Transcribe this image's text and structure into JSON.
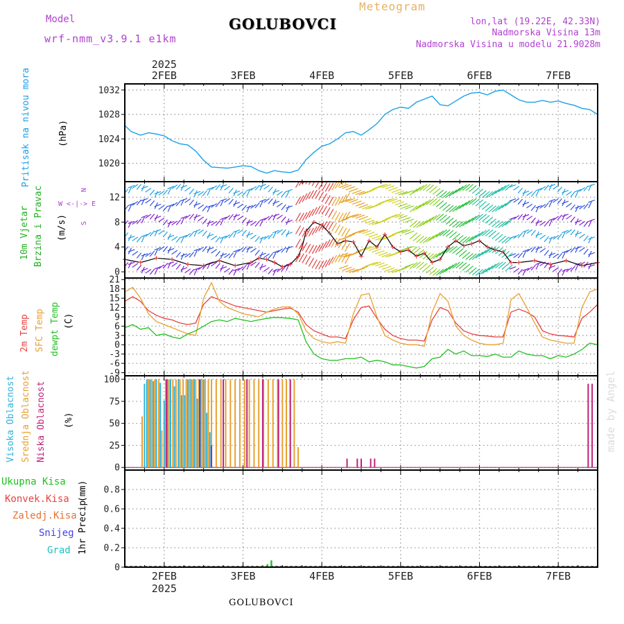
{
  "header": {
    "model_label": "Model",
    "model_name": "wrf-nmm_v3.9.1 e1km",
    "station": "GOLUBOVCI",
    "meteogram": "Meteogram",
    "lonlat": "lon,lat (19.22E, 42.33N)",
    "altitude": "Nadmorska Visina 13m",
    "model_altitude": "Nadmorska Visina u modelu 21.9028m",
    "footer_station": "GOLUBOVCI",
    "watermark": "made by Angel"
  },
  "colors": {
    "pressure": "#1aa0e8",
    "temp2m": "#e84040",
    "sfc": "#e8a030",
    "dewpt": "#20c020",
    "high_cloud": "#30b0d8",
    "mid_cloud": "#e8a030",
    "low_cloud": "#c0207a",
    "precip_total": "#20c020",
    "conv": "#e84040",
    "frozen": "#e87030",
    "snow": "#4040e8",
    "grad": "#20c0c0",
    "wind_label": "#20b020",
    "wind_dir": "#b040d0",
    "model_text": "#b040d0",
    "title_orange": "#e8b060"
  },
  "chart_data": [
    {
      "type": "line",
      "panel": "pressure",
      "x_ticks": [
        "2FEB",
        "3FEB",
        "4FEB",
        "5FEB",
        "6FEB",
        "7FEB"
      ],
      "year": "2025",
      "xlim": [
        1.5,
        7.5
      ],
      "ylim": [
        1017,
        1033
      ],
      "y_ticks": [
        1020,
        1024,
        1028,
        1032
      ],
      "ylabel": "Pritisak na nivou mora",
      "unit": "(hPa)",
      "grid": true,
      "series": [
        {
          "x": [
            1.5,
            1.58,
            1.7,
            1.8,
            1.9,
            2.0,
            2.1,
            2.2,
            2.3,
            2.4,
            2.5,
            2.6,
            2.7,
            2.8,
            2.9,
            3.0,
            3.1,
            3.2,
            3.3,
            3.4,
            3.5,
            3.6,
            3.7,
            3.8,
            3.9,
            4.0,
            4.1,
            4.2,
            4.3,
            4.4,
            4.5,
            4.6,
            4.7,
            4.8,
            4.9,
            5.0,
            5.1,
            5.2,
            5.3,
            5.4,
            5.5,
            5.6,
            5.7,
            5.8,
            5.9,
            6.0,
            6.1,
            6.2,
            6.3,
            6.4,
            6.5,
            6.6,
            6.7,
            6.8,
            6.9,
            7.0,
            7.1,
            7.2,
            7.3,
            7.4,
            7.5
          ],
          "y": [
            1026.2,
            1025.2,
            1024.6,
            1025.0,
            1024.8,
            1024.5,
            1023.7,
            1023.2,
            1023.0,
            1022.0,
            1020.5,
            1019.4,
            1019.3,
            1019.2,
            1019.4,
            1019.6,
            1019.5,
            1018.8,
            1018.4,
            1018.8,
            1018.6,
            1018.5,
            1018.9,
            1020.6,
            1021.8,
            1022.8,
            1023.2,
            1024.0,
            1025.0,
            1025.2,
            1024.6,
            1025.5,
            1026.5,
            1028.0,
            1028.8,
            1029.2,
            1029.0,
            1030.0,
            1030.5,
            1031.0,
            1029.6,
            1029.4,
            1030.2,
            1031.0,
            1031.5,
            1031.6,
            1031.2,
            1031.8,
            1032.0,
            1031.2,
            1030.4,
            1030.0,
            1030.0,
            1030.3,
            1030.0,
            1030.2,
            1029.8,
            1029.5,
            1029.0,
            1028.8,
            1028.0
          ]
        }
      ]
    },
    {
      "type": "line",
      "panel": "wind",
      "xlim": [
        1.5,
        7.5
      ],
      "ylim": [
        -1,
        14.5
      ],
      "y_ticks": [
        0,
        4,
        8,
        12
      ],
      "ylabel": "10m Vjetar",
      "ylabel2": "Brzina i Pravac",
      "unit": "(m/s)",
      "compass": [
        "N",
        "W <-|-> E",
        "S"
      ],
      "grid": true,
      "barb_rows": [
        1,
        3.5,
        6.2,
        8.7,
        11.2,
        13.5
      ],
      "series": [
        {
          "name": "speed",
          "x": [
            1.5,
            1.7,
            1.9,
            2.1,
            2.3,
            2.5,
            2.7,
            2.9,
            3.1,
            3.2,
            3.3,
            3.4,
            3.5,
            3.6,
            3.7,
            3.75,
            3.8,
            3.9,
            4.0,
            4.1,
            4.2,
            4.3,
            4.4,
            4.5,
            4.6,
            4.7,
            4.8,
            4.9,
            5.0,
            5.1,
            5.2,
            5.3,
            5.4,
            5.5,
            5.6,
            5.7,
            5.8,
            5.9,
            6.0,
            6.1,
            6.2,
            6.3,
            6.4,
            6.5,
            6.7,
            6.9,
            7.1,
            7.3,
            7.5
          ],
          "y": [
            2.0,
            1.5,
            2.2,
            2.0,
            1.2,
            1.0,
            1.8,
            1.0,
            1.5,
            2.2,
            2.0,
            1.5,
            0.8,
            1.2,
            2.5,
            4.0,
            6.5,
            8.0,
            7.5,
            6.2,
            4.5,
            5.0,
            4.8,
            2.5,
            5.0,
            4.0,
            6.0,
            4.0,
            3.2,
            3.5,
            2.5,
            3.0,
            1.5,
            2.0,
            4.0,
            5.0,
            4.2,
            4.5,
            5.0,
            4.0,
            3.5,
            3.2,
            1.5,
            1.5,
            1.8,
            1.2,
            1.8,
            1.0,
            1.5
          ]
        }
      ]
    },
    {
      "type": "line",
      "panel": "temperature",
      "xlim": [
        1.5,
        7.5
      ],
      "ylim": [
        -10,
        21.5
      ],
      "y_ticks": [
        -9,
        -6,
        -3,
        0,
        3,
        6,
        9,
        12,
        15,
        18,
        21
      ],
      "ylabels": [
        "2m Temp",
        "SFC Temp",
        "dewpt Temp"
      ],
      "unit": "(C)",
      "grid": true,
      "series": [
        {
          "name": "2m Temp",
          "x": [
            1.5,
            1.6,
            1.7,
            1.8,
            1.9,
            2.0,
            2.1,
            2.2,
            2.3,
            2.4,
            2.5,
            2.6,
            2.7,
            2.8,
            2.9,
            3.0,
            3.1,
            3.2,
            3.3,
            3.4,
            3.5,
            3.6,
            3.7,
            3.8,
            3.9,
            4.0,
            4.1,
            4.2,
            4.3,
            4.4,
            4.5,
            4.6,
            4.7,
            4.8,
            4.9,
            5.0,
            5.1,
            5.2,
            5.3,
            5.4,
            5.5,
            5.6,
            5.7,
            5.8,
            5.9,
            6.0,
            6.1,
            6.2,
            6.3,
            6.4,
            6.5,
            6.6,
            6.7,
            6.8,
            6.9,
            7.0,
            7.1,
            7.2,
            7.3,
            7.4,
            7.5
          ],
          "y": [
            14,
            15.5,
            14,
            11,
            9.5,
            8.5,
            8.0,
            7.0,
            6.5,
            7.0,
            13,
            15.5,
            14.5,
            13.5,
            12.5,
            12.0,
            11.5,
            11.0,
            10.5,
            11.0,
            11.5,
            11.8,
            10.5,
            6.5,
            4.5,
            3.5,
            2.5,
            2.5,
            2.0,
            8.0,
            12.0,
            12.5,
            8.5,
            5.0,
            3.0,
            2.0,
            1.5,
            1.5,
            1.2,
            8.0,
            12.0,
            11.0,
            7.0,
            4.5,
            3.5,
            3.0,
            2.8,
            2.5,
            2.5,
            10.5,
            11.5,
            10.5,
            9.0,
            4.5,
            3.5,
            3.0,
            2.8,
            2.5,
            8.5,
            10.5,
            13.0
          ]
        },
        {
          "name": "SFC Temp",
          "x": [
            1.5,
            1.6,
            1.7,
            1.8,
            1.9,
            2.0,
            2.1,
            2.2,
            2.3,
            2.4,
            2.5,
            2.6,
            2.7,
            2.8,
            2.9,
            3.0,
            3.1,
            3.2,
            3.3,
            3.4,
            3.5,
            3.6,
            3.7,
            3.8,
            3.9,
            4.0,
            4.1,
            4.2,
            4.3,
            4.4,
            4.5,
            4.6,
            4.7,
            4.8,
            4.9,
            5.0,
            5.1,
            5.2,
            5.3,
            5.4,
            5.5,
            5.6,
            5.7,
            5.8,
            5.9,
            6.0,
            6.1,
            6.2,
            6.3,
            6.4,
            6.5,
            6.6,
            6.7,
            6.8,
            6.9,
            7.0,
            7.1,
            7.2,
            7.3,
            7.4,
            7.5
          ],
          "y": [
            17,
            18.5,
            15,
            10,
            7.5,
            6.5,
            5.5,
            4.5,
            3.5,
            3.0,
            15.0,
            20.0,
            14.0,
            12.0,
            11.0,
            10.0,
            9.5,
            9.0,
            10.5,
            11.5,
            12.2,
            12.2,
            10.0,
            4.5,
            2.0,
            1.0,
            0.5,
            1.0,
            0.5,
            10.0,
            16.0,
            16.5,
            9.0,
            3.0,
            1.5,
            0.5,
            0.0,
            0.0,
            -0.5,
            10.5,
            16.5,
            14.0,
            6.0,
            3.0,
            1.5,
            0.5,
            0.0,
            0.0,
            0.5,
            14.5,
            16.5,
            12.0,
            7.0,
            2.5,
            1.5,
            1.0,
            0.5,
            0.5,
            12.0,
            17.0,
            18.0
          ]
        },
        {
          "name": "dewpt Temp",
          "x": [
            1.5,
            1.6,
            1.7,
            1.8,
            1.9,
            2.0,
            2.1,
            2.2,
            2.3,
            2.4,
            2.5,
            2.6,
            2.7,
            2.8,
            2.9,
            3.0,
            3.1,
            3.2,
            3.3,
            3.4,
            3.5,
            3.6,
            3.7,
            3.8,
            3.9,
            4.0,
            4.1,
            4.2,
            4.3,
            4.4,
            4.5,
            4.6,
            4.7,
            4.8,
            4.9,
            5.0,
            5.1,
            5.2,
            5.3,
            5.4,
            5.5,
            5.6,
            5.7,
            5.8,
            5.9,
            6.0,
            6.1,
            6.2,
            6.3,
            6.4,
            6.5,
            6.6,
            6.7,
            6.8,
            6.9,
            7.0,
            7.1,
            7.2,
            7.3,
            7.4,
            7.5
          ],
          "y": [
            5.5,
            6.5,
            5.0,
            5.5,
            3.0,
            3.5,
            2.5,
            2.0,
            3.5,
            4.5,
            6.0,
            7.5,
            8.0,
            7.5,
            8.5,
            8.0,
            7.5,
            8.0,
            8.5,
            8.8,
            8.7,
            8.5,
            8.0,
            1.0,
            -3.0,
            -4.5,
            -5.0,
            -5.0,
            -4.5,
            -4.5,
            -4.0,
            -5.5,
            -5.0,
            -5.5,
            -6.5,
            -6.5,
            -7.0,
            -7.5,
            -7.0,
            -4.5,
            -4.0,
            -1.5,
            -3.0,
            -2.0,
            -3.5,
            -3.5,
            -3.8,
            -3.0,
            -4.0,
            -4.0,
            -2.0,
            -3.0,
            -3.5,
            -3.5,
            -4.5,
            -3.5,
            -4.0,
            -3.0,
            -1.5,
            0.5,
            0.0
          ]
        }
      ]
    },
    {
      "type": "bar",
      "panel": "clouds",
      "xlim": [
        1.5,
        7.5
      ],
      "ylim": [
        -3,
        104
      ],
      "y_ticks": [
        0,
        25,
        50,
        75,
        100
      ],
      "ylabels": [
        "Visoka Oblacnost",
        "Srednja Oblacnost",
        "Niska Oblacnost"
      ],
      "unit": "(%)",
      "grid": true,
      "high": {
        "x": [
          1.75,
          1.78,
          1.82,
          1.86,
          1.9,
          1.95,
          2.0,
          2.04,
          2.08,
          2.13,
          2.18,
          2.22,
          2.26,
          2.3,
          2.34,
          2.38,
          2.42,
          2.46,
          2.5,
          2.54,
          2.58
        ],
        "y": [
          95,
          100,
          100,
          98,
          100,
          96,
          76,
          100,
          100,
          92,
          100,
          82,
          82,
          100,
          100,
          100,
          78,
          100,
          100,
          62,
          40
        ]
      },
      "mid": {
        "x": [
          1.72,
          1.8,
          1.84,
          1.88,
          1.93,
          1.97,
          2.02,
          2.06,
          2.11,
          2.15,
          2.2,
          2.24,
          2.28,
          2.32,
          2.36,
          2.4,
          2.44,
          2.48,
          2.52,
          2.56,
          2.6,
          2.66,
          2.72,
          2.78,
          2.84,
          2.9,
          2.96,
          3.02,
          3.08,
          3.14,
          3.2,
          3.26,
          3.32,
          3.38,
          3.44,
          3.5,
          3.55,
          3.6,
          3.65,
          3.7
        ],
        "y": [
          58,
          100,
          100,
          100,
          100,
          42,
          100,
          100,
          100,
          100,
          100,
          100,
          100,
          100,
          100,
          100,
          100,
          100,
          100,
          100,
          100,
          100,
          100,
          100,
          100,
          100,
          100,
          100,
          100,
          100,
          100,
          100,
          100,
          100,
          100,
          100,
          100,
          100,
          100,
          23
        ]
      },
      "low": {
        "x": [
          2.03,
          2.45,
          2.6,
          2.75,
          3.05,
          3.25,
          3.45,
          3.6,
          4.32,
          4.45,
          4.5,
          4.62,
          4.67,
          7.38,
          7.43
        ],
        "y": [
          100,
          100,
          25,
          100,
          100,
          100,
          100,
          100,
          10,
          10,
          10,
          10,
          10,
          95,
          95
        ]
      }
    },
    {
      "type": "bar",
      "panel": "precip",
      "xlim": [
        1.5,
        7.5
      ],
      "ylim": [
        0,
        1.0
      ],
      "y_ticks": [
        0,
        0.2,
        0.4,
        0.6,
        0.8
      ],
      "ylabel": "1hr Precip",
      "unit": "(mm)",
      "legend": [
        "Ukupna Kisa",
        "Konvek.Kisa",
        "Zaledj.Kisa",
        "Snijeg",
        "Grad"
      ],
      "grid": true,
      "total": {
        "x": [
          3.18,
          3.25,
          3.31,
          3.36
        ],
        "y": [
          0.005,
          0.01,
          0.03,
          0.07
        ]
      }
    }
  ]
}
